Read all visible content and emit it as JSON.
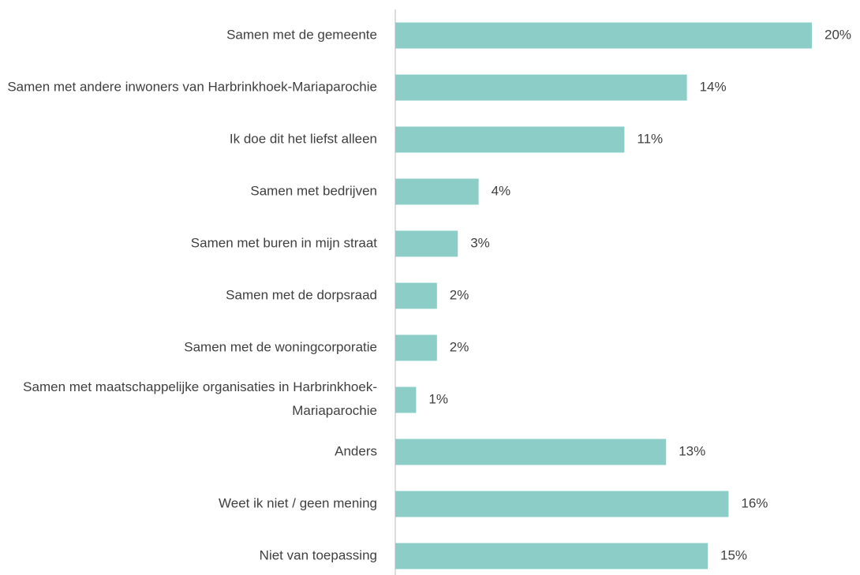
{
  "chart_data": {
    "type": "bar",
    "orientation": "horizontal",
    "categories": [
      "Samen met de gemeente",
      "Samen met andere inwoners van Harbrinkhoek-Mariaparochie",
      "Ik doe dit het liefst alleen",
      "Samen met bedrijven",
      "Samen met buren in mijn straat",
      "Samen met de dorpsraad",
      "Samen met de woningcorporatie",
      "Samen met maatschappelijke organisaties in Harbrinkhoek-Mariaparochie",
      "Anders",
      "Weet ik niet / geen mening",
      "Niet van toepassing"
    ],
    "values": [
      20,
      14,
      11,
      4,
      3,
      2,
      2,
      1,
      13,
      16,
      15
    ],
    "value_labels": [
      "20%",
      "14%",
      "11%",
      "4%",
      "3%",
      "2%",
      "2%",
      "1%",
      "13%",
      "16%",
      "15%"
    ],
    "color": "#8ccdc8"
  }
}
